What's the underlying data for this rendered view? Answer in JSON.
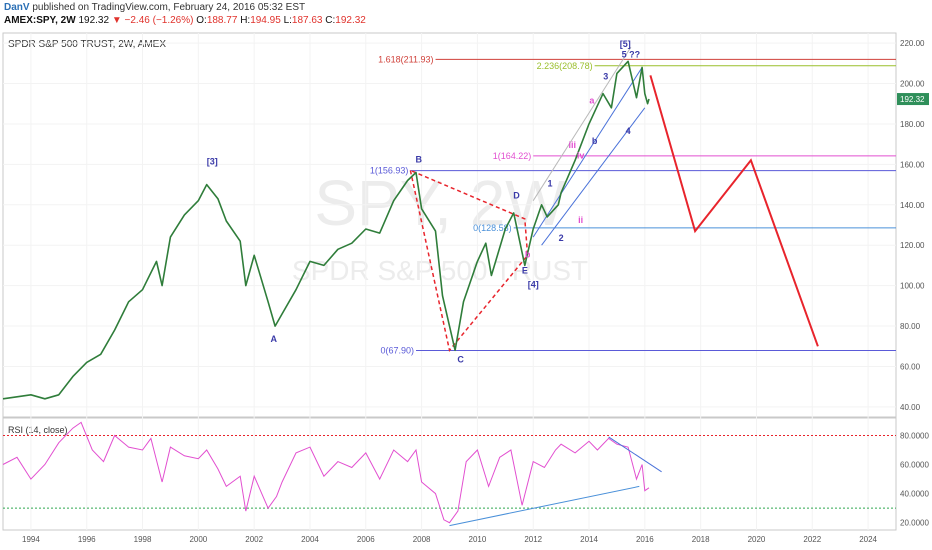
{
  "header": {
    "author": "DanV",
    "published_text": "published on TradingView.com, February 24, 2016 05:32 EST",
    "symbol": "AMEX:SPY, 2W",
    "last": "192.32",
    "change": "−2.46 (−1.26%)",
    "o_label": "O:",
    "o_value": "188.77",
    "h_label": "H:",
    "h_value": "194.95",
    "l_label": "L:",
    "l_value": "187.63",
    "c_label": "C:",
    "c_value": "192.32"
  },
  "chart_data": {
    "type": "line",
    "title": "SPDR S&P 500 TRUST, 2W, AMEX",
    "watermark_big": "SPY, 2W",
    "watermark_small": "SPDR S&P 500 TRUST",
    "price_axis": {
      "ylim": [
        35,
        225
      ],
      "ticks": [
        "40.00",
        "60.00",
        "80.00",
        "100.00",
        "120.00",
        "140.00",
        "160.00",
        "180.00",
        "200.00",
        "220.00"
      ],
      "last_label": "192.32",
      "last_value": 192.32
    },
    "time_axis": {
      "xlim": [
        1993.0,
        2025.0
      ],
      "ticks": [
        "1994",
        "1996",
        "1998",
        "2000",
        "2002",
        "2004",
        "2006",
        "2008",
        "2010",
        "2012",
        "2014",
        "2016",
        "2018",
        "2020",
        "2022",
        "2024"
      ]
    },
    "price_series": {
      "name": "SPY",
      "points": [
        [
          1993.0,
          44
        ],
        [
          1993.5,
          45
        ],
        [
          1994.0,
          46
        ],
        [
          1994.5,
          44
        ],
        [
          1995.0,
          46
        ],
        [
          1995.5,
          55
        ],
        [
          1996.0,
          62
        ],
        [
          1996.5,
          66
        ],
        [
          1997.0,
          78
        ],
        [
          1997.5,
          92
        ],
        [
          1998.0,
          98
        ],
        [
          1998.5,
          112
        ],
        [
          1998.7,
          100
        ],
        [
          1999.0,
          124
        ],
        [
          1999.5,
          135
        ],
        [
          2000.0,
          142
        ],
        [
          2000.3,
          150
        ],
        [
          2000.7,
          143
        ],
        [
          2001.0,
          132
        ],
        [
          2001.5,
          122
        ],
        [
          2001.7,
          100
        ],
        [
          2002.0,
          115
        ],
        [
          2002.5,
          92
        ],
        [
          2002.75,
          80
        ],
        [
          2003.0,
          86
        ],
        [
          2003.5,
          98
        ],
        [
          2004.0,
          112
        ],
        [
          2004.5,
          110
        ],
        [
          2005.0,
          118
        ],
        [
          2005.5,
          121
        ],
        [
          2006.0,
          128
        ],
        [
          2006.5,
          126
        ],
        [
          2007.0,
          142
        ],
        [
          2007.5,
          152
        ],
        [
          2007.8,
          156
        ],
        [
          2008.0,
          138
        ],
        [
          2008.5,
          127
        ],
        [
          2008.75,
          95
        ],
        [
          2009.0,
          80
        ],
        [
          2009.2,
          68
        ],
        [
          2009.5,
          92
        ],
        [
          2010.0,
          112
        ],
        [
          2010.3,
          121
        ],
        [
          2010.5,
          105
        ],
        [
          2011.0,
          128
        ],
        [
          2011.3,
          136
        ],
        [
          2011.7,
          110
        ],
        [
          2012.0,
          128
        ],
        [
          2012.3,
          140
        ],
        [
          2012.5,
          134
        ],
        [
          2012.9,
          140
        ],
        [
          2013.0,
          146
        ],
        [
          2013.5,
          162
        ],
        [
          2014.0,
          180
        ],
        [
          2014.5,
          195
        ],
        [
          2014.8,
          188
        ],
        [
          2015.0,
          205
        ],
        [
          2015.4,
          211
        ],
        [
          2015.7,
          193
        ],
        [
          2015.9,
          208
        ],
        [
          2016.0,
          195
        ],
        [
          2016.1,
          190
        ],
        [
          2016.15,
          192.32
        ]
      ]
    },
    "projection": {
      "name": "projection",
      "color": "#e8242c",
      "points": [
        [
          2016.2,
          204
        ],
        [
          2017.8,
          127
        ],
        [
          2019.8,
          162
        ],
        [
          2022.2,
          70
        ]
      ]
    },
    "horizontal_levels": [
      {
        "label": "1.618(211.93)",
        "value": 211.93,
        "color": "#d0413a",
        "x_start": 2008.5
      },
      {
        "label": "2.236(208.78)",
        "value": 208.78,
        "color": "#9abf2c",
        "x_start": 2014.2
      },
      {
        "label": "1(164.22)",
        "value": 164.22,
        "color": "#e24fd0",
        "x_start": 2012.0
      },
      {
        "label": "1(156.93)",
        "value": 156.93,
        "color": "#5a5ad8",
        "x_start": 2007.6
      },
      {
        "label": "0(128.58)",
        "value": 128.58,
        "color": "#4a90d9",
        "x_start": 2011.3
      },
      {
        "label": "0(67.90)",
        "value": 67.9,
        "color": "#5a5ad8",
        "x_start": 2007.8
      }
    ],
    "abc_dashed": {
      "color": "#e8242c",
      "points": [
        [
          2007.6,
          157
        ],
        [
          2009.0,
          68
        ],
        [
          2011.8,
          115
        ],
        [
          2011.7,
          133
        ],
        [
          2007.6,
          157
        ]
      ]
    },
    "channel_lines": [
      {
        "color": "#4a72d9",
        "points": [
          [
            2012.0,
            124
          ],
          [
            2015.9,
            208
          ]
        ]
      },
      {
        "color": "#4a72d9",
        "points": [
          [
            2012.3,
            120
          ],
          [
            2016.0,
            188
          ]
        ]
      },
      {
        "color": "#b9b9b9",
        "points": [
          [
            2012.0,
            142
          ],
          [
            2015.5,
            218
          ]
        ]
      }
    ],
    "annotations": [
      {
        "text": "[5]",
        "x": 2015.3,
        "y": 218,
        "color": "#3a3aa8"
      },
      {
        "text": "5 ??",
        "x": 2015.5,
        "y": 213,
        "color": "#3a3aa8"
      },
      {
        "text": "[3]",
        "x": 2000.5,
        "y": 160,
        "color": "#3a3aa8"
      },
      {
        "text": "B",
        "x": 2007.9,
        "y": 161,
        "color": "#3a3aa8"
      },
      {
        "text": "A",
        "x": 2002.7,
        "y": 72,
        "color": "#3a3aa8"
      },
      {
        "text": "C",
        "x": 2009.4,
        "y": 62,
        "color": "#3a3aa8"
      },
      {
        "text": "D",
        "x": 2011.4,
        "y": 143,
        "color": "#3a3aa8"
      },
      {
        "text": "E",
        "x": 2011.7,
        "y": 106,
        "color": "#3a3aa8"
      },
      {
        "text": "[4]",
        "x": 2012.0,
        "y": 99,
        "color": "#3a3aa8"
      },
      {
        "text": "1",
        "x": 2012.6,
        "y": 149,
        "color": "#3a3aa8"
      },
      {
        "text": "2",
        "x": 2013.0,
        "y": 122,
        "color": "#3a3aa8"
      },
      {
        "text": "3",
        "x": 2014.6,
        "y": 202,
        "color": "#3a3aa8"
      },
      {
        "text": "4",
        "x": 2015.4,
        "y": 175,
        "color": "#3a3aa8"
      },
      {
        "text": "a",
        "x": 2014.1,
        "y": 190,
        "color": "#e24fd0"
      },
      {
        "text": "b",
        "x": 2014.2,
        "y": 170,
        "color": "#3a3aa8"
      },
      {
        "text": "iii",
        "x": 2013.4,
        "y": 168,
        "color": "#e24fd0"
      },
      {
        "text": "iv",
        "x": 2013.7,
        "y": 163,
        "color": "#e24fd0"
      },
      {
        "text": "ii",
        "x": 2013.7,
        "y": 131,
        "color": "#e24fd0"
      },
      {
        "text": "b",
        "x": 2011.8,
        "y": 114,
        "color": "#e24fd0"
      }
    ],
    "rsi": {
      "title": "RSI (14, close)",
      "ylim": [
        15,
        92
      ],
      "ticks": [
        "20.0000",
        "40.0000",
        "60.0000",
        "80.0000"
      ],
      "overbought": 80,
      "oversold": 30,
      "points": [
        [
          1993.0,
          60
        ],
        [
          1993.5,
          65
        ],
        [
          1994.0,
          50
        ],
        [
          1994.5,
          60
        ],
        [
          1995.0,
          75
        ],
        [
          1995.5,
          85
        ],
        [
          1995.8,
          89
        ],
        [
          1996.2,
          70
        ],
        [
          1996.6,
          62
        ],
        [
          1997.0,
          80
        ],
        [
          1997.5,
          72
        ],
        [
          1998.0,
          70
        ],
        [
          1998.3,
          78
        ],
        [
          1998.7,
          48
        ],
        [
          1999.0,
          72
        ],
        [
          1999.5,
          66
        ],
        [
          2000.0,
          64
        ],
        [
          2000.3,
          70
        ],
        [
          2000.7,
          57
        ],
        [
          2001.0,
          45
        ],
        [
          2001.5,
          52
        ],
        [
          2001.7,
          28
        ],
        [
          2002.0,
          52
        ],
        [
          2002.5,
          30
        ],
        [
          2002.8,
          38
        ],
        [
          2003.0,
          48
        ],
        [
          2003.5,
          68
        ],
        [
          2004.0,
          72
        ],
        [
          2004.5,
          52
        ],
        [
          2005.0,
          62
        ],
        [
          2005.5,
          58
        ],
        [
          2006.0,
          68
        ],
        [
          2006.5,
          50
        ],
        [
          2007.0,
          70
        ],
        [
          2007.5,
          62
        ],
        [
          2007.8,
          70
        ],
        [
          2008.0,
          48
        ],
        [
          2008.5,
          40
        ],
        [
          2008.8,
          22
        ],
        [
          2009.0,
          20
        ],
        [
          2009.3,
          28
        ],
        [
          2009.6,
          62
        ],
        [
          2010.0,
          70
        ],
        [
          2010.4,
          45
        ],
        [
          2010.8,
          65
        ],
        [
          2011.2,
          70
        ],
        [
          2011.6,
          32
        ],
        [
          2012.0,
          62
        ],
        [
          2012.4,
          58
        ],
        [
          2012.8,
          70
        ],
        [
          2013.0,
          74
        ],
        [
          2013.5,
          68
        ],
        [
          2014.0,
          76
        ],
        [
          2014.3,
          70
        ],
        [
          2014.7,
          78
        ],
        [
          2015.0,
          74
        ],
        [
          2015.4,
          72
        ],
        [
          2015.7,
          50
        ],
        [
          2015.9,
          60
        ],
        [
          2016.0,
          42
        ],
        [
          2016.15,
          44
        ]
      ]
    },
    "rsi_trendlines": [
      {
        "color": "#4a72d9",
        "points": [
          [
            2014.7,
            79
          ],
          [
            2016.6,
            55
          ]
        ]
      },
      {
        "color": "#4a90d9",
        "points": [
          [
            2009.0,
            18
          ],
          [
            2015.8,
            45
          ]
        ]
      }
    ]
  }
}
